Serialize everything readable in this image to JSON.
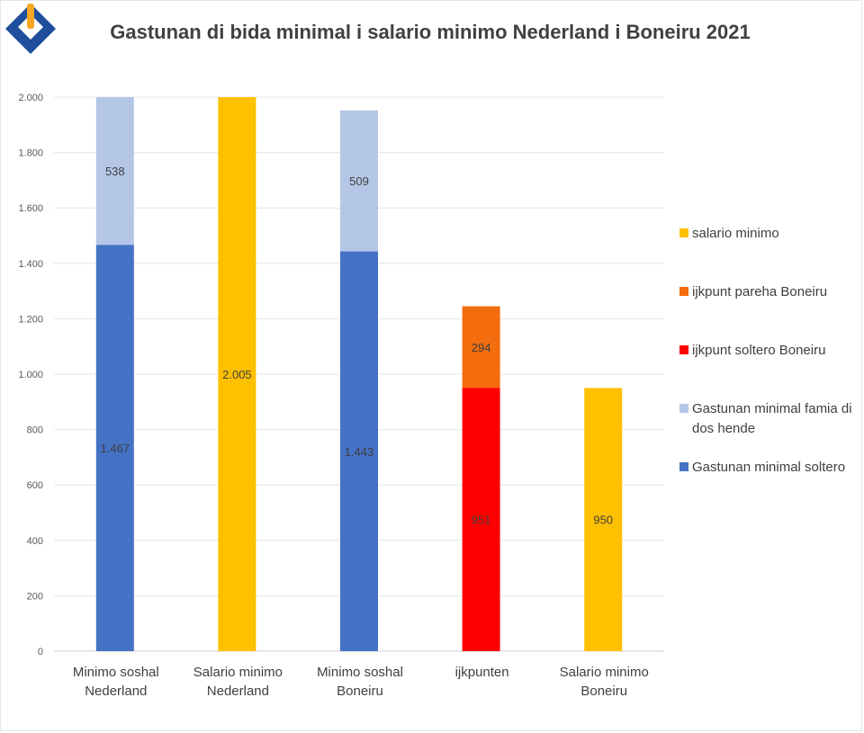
{
  "chart_data": {
    "type": "bar",
    "stacked": true,
    "title": "Gastunan di bida minimal i salario minimo Nederland i Boneiru 2021",
    "xlabel": "",
    "ylabel": "",
    "ylim": [
      0,
      2000
    ],
    "yticks": [
      0,
      200,
      400,
      600,
      800,
      1000,
      1200,
      1400,
      1600,
      1800,
      2000
    ],
    "ytick_labels": [
      "0",
      "200",
      "400",
      "600",
      "800",
      "1.000",
      "1.200",
      "1.400",
      "1.600",
      "1.800",
      "2.000"
    ],
    "grid": true,
    "legend_position": "right",
    "categories": [
      [
        "Minimo soshal",
        "Nederland"
      ],
      [
        "Salario minimo",
        "Nederland"
      ],
      [
        "Minimo soshal",
        "Boneiru"
      ],
      [
        "ijkpunten"
      ],
      [
        "Salario minimo",
        "Boneiru"
      ]
    ],
    "series": [
      {
        "name": "Gastunan minimal soltero",
        "color": "#4472c4",
        "values": [
          1467,
          null,
          1443,
          null,
          null
        ],
        "labels": [
          "1.467",
          null,
          "1.443",
          null,
          null
        ]
      },
      {
        "name": "Gastunan minimal famia di dos hende",
        "color": "#b4c7e7",
        "values": [
          538,
          null,
          509,
          null,
          null
        ],
        "labels": [
          "538",
          null,
          "509",
          null,
          null
        ]
      },
      {
        "name": "ijkpunt soltero Boneiru",
        "color": "#ff0000",
        "values": [
          null,
          null,
          null,
          951,
          null
        ],
        "labels": [
          null,
          null,
          null,
          "951",
          null
        ]
      },
      {
        "name": "ijkpunt pareha Boneiru",
        "color": "#f36c0e",
        "values": [
          null,
          null,
          null,
          294,
          null
        ],
        "labels": [
          null,
          null,
          null,
          "294",
          null
        ]
      },
      {
        "name": "salario minimo",
        "color": "#ffc000",
        "values": [
          null,
          2005,
          null,
          null,
          950
        ],
        "labels": [
          null,
          "2.005",
          null,
          null,
          "950"
        ]
      }
    ],
    "legend": [
      {
        "lines": [
          "salario minimo"
        ],
        "color": "#ffc000"
      },
      {
        "lines": [
          "ijkpunt pareha Boneiru"
        ],
        "color": "#f36c0e"
      },
      {
        "lines": [
          "ijkpunt soltero Boneiru"
        ],
        "color": "#ff0000"
      },
      {
        "lines": [
          "Gastunan minimal famia di",
          "dos hende"
        ],
        "color": "#b4c7e7"
      },
      {
        "lines": [
          "Gastunan minimal soltero"
        ],
        "color": "#4472c4"
      }
    ]
  },
  "logo": {
    "name": "logo-icon",
    "color_dark": "#1f4e9c",
    "color_accent": "#f5a623"
  }
}
